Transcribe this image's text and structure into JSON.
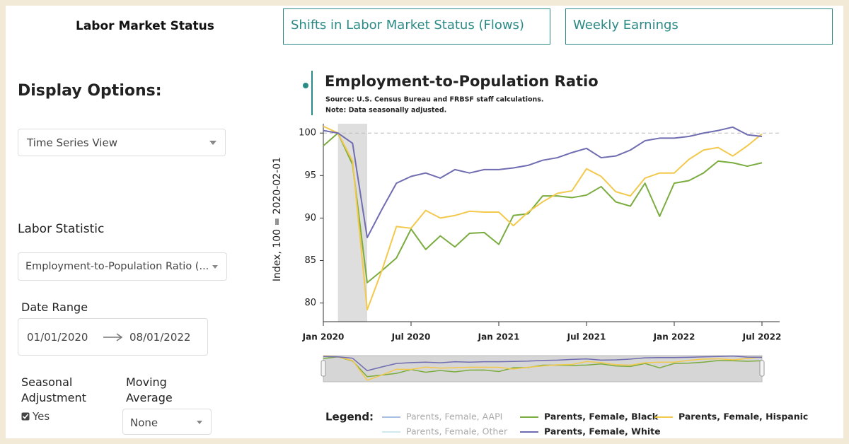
{
  "tabs": {
    "active": "Labor Market Status",
    "others": [
      "Shifts in Labor Market Status (Flows)",
      "Weekly Earnings"
    ]
  },
  "sidebar": {
    "title": "Display Options:",
    "view_select": "Time Series View",
    "statistic_label": "Labor Statistic",
    "statistic_select": "Employment-to-Population Ratio (...",
    "date_range_label": "Date Range",
    "date_start": "01/01/2020",
    "date_end": "08/01/2022",
    "seasonal_label": "Seasonal Adjustment",
    "seasonal_option": "Yes",
    "moving_average_label": "Moving Average",
    "moving_average_select": "None"
  },
  "chart_data": {
    "type": "line",
    "title": "Employment-to-Population Ratio",
    "source": "Source: U.S. Census Bureau and FRBSF staff calculations.",
    "note": "Note: Data seasonally adjusted.",
    "y_label": "Index, 100 = 2020-02-01",
    "legend_title": "Legend:",
    "x": [
      "2020-01",
      "2020-02",
      "2020-03",
      "2020-04",
      "2020-05",
      "2020-06",
      "2020-07",
      "2020-08",
      "2020-09",
      "2020-10",
      "2020-11",
      "2020-12",
      "2021-01",
      "2021-02",
      "2021-03",
      "2021-04",
      "2021-05",
      "2021-06",
      "2021-07",
      "2021-08",
      "2021-09",
      "2021-10",
      "2021-11",
      "2021-12",
      "2022-01",
      "2022-02",
      "2022-03",
      "2022-04",
      "2022-05",
      "2022-06",
      "2022-07"
    ],
    "xlim": [
      "2020-01",
      "2022-07"
    ],
    "xticks": [
      {
        "value": "2020-01",
        "label": "Jan 2020"
      },
      {
        "value": "2020-07",
        "label": "Jul 2020"
      },
      {
        "value": "2021-01",
        "label": "Jan 2021"
      },
      {
        "value": "2021-07",
        "label": "Jul 2021"
      },
      {
        "value": "2022-01",
        "label": "Jan 2022"
      },
      {
        "value": "2022-07",
        "label": "Jul 2022"
      }
    ],
    "ylim": [
      77.8,
      101.1
    ],
    "yticks": [
      80,
      85,
      90,
      95,
      100
    ],
    "reference_line": 100,
    "shaded_range": [
      "2020-02",
      "2020-04"
    ],
    "series": [
      {
        "name": "Parents, Female, Black",
        "color": "#7aac3e",
        "values": [
          98.5,
          100,
          96.3,
          82.4,
          83.8,
          85.3,
          88.7,
          86.3,
          87.9,
          86.6,
          88.2,
          88.3,
          86.9,
          90.3,
          90.5,
          92.6,
          92.6,
          92.4,
          92.7,
          93.7,
          91.9,
          91.4,
          94.1,
          90.2,
          94.1,
          94.4,
          95.3,
          96.7,
          96.5,
          96.1,
          96.5
        ]
      },
      {
        "name": "Parents, Female, Hispanic",
        "color": "#f2c94c",
        "values": [
          100.8,
          100,
          96.7,
          79.2,
          83.8,
          89.0,
          88.8,
          90.9,
          90.0,
          90.3,
          90.8,
          90.7,
          90.7,
          89.1,
          90.7,
          91.9,
          92.9,
          93.2,
          95.8,
          94.9,
          93.1,
          92.6,
          94.7,
          95.3,
          95.3,
          96.9,
          98.0,
          98.3,
          97.3,
          98.5,
          99.9
        ]
      },
      {
        "name": "Parents, Female, White",
        "color": "#6f6cb1",
        "values": [
          100.3,
          100,
          98.8,
          87.7,
          91.0,
          94.1,
          94.9,
          95.3,
          94.7,
          95.7,
          95.3,
          95.7,
          95.7,
          95.9,
          96.2,
          96.8,
          97.1,
          97.7,
          98.2,
          97.1,
          97.3,
          98.0,
          99.1,
          99.4,
          99.4,
          99.6,
          100.0,
          100.3,
          100.7,
          99.8,
          99.6
        ]
      }
    ],
    "hidden_series": [
      {
        "name": "Parents, Female, AAPI",
        "color": "#a9bfe2"
      },
      {
        "name": "Parents, Female, Other",
        "color": "#cfe9ef"
      }
    ]
  }
}
